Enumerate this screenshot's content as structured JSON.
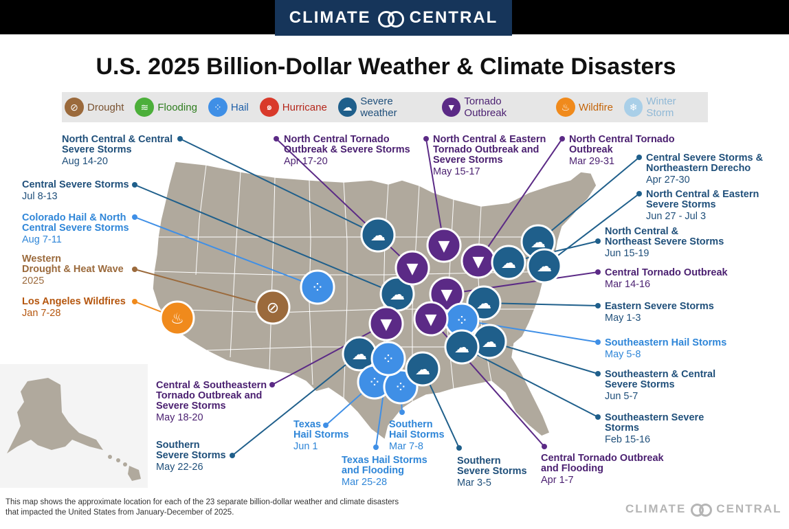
{
  "brand": {
    "left": "CLIMATE",
    "right": "CENTRAL"
  },
  "title": "U.S. 2025 Billion-Dollar Weather & Climate Disasters",
  "legend": [
    {
      "label": "Drought",
      "icon": "drought-icon",
      "color": "#9b6a3c",
      "text_color": "#7a5230"
    },
    {
      "label": "Flooding",
      "icon": "flooding-icon",
      "color": "#4caf3a",
      "text_color": "#2e7d1e"
    },
    {
      "label": "Hail",
      "icon": "hail-icon",
      "color": "#3f8fe6",
      "text_color": "#1e5fa8"
    },
    {
      "label": "Hurricane",
      "icon": "hurricane-icon",
      "color": "#d93a2b",
      "text_color": "#b5261a"
    },
    {
      "label": "Severe weather",
      "icon": "severe-weather-icon",
      "color": "#1f5f8b",
      "text_color": "#1f4f7a"
    },
    {
      "label": "Tornado Outbreak",
      "icon": "tornado-icon",
      "color": "#5b2a86",
      "text_color": "#4a1f70"
    },
    {
      "label": "Wildfire",
      "icon": "wildfire-icon",
      "color": "#f08a1c",
      "text_color": "#c4650a"
    },
    {
      "label": "Winter Storm",
      "icon": "winter-storm-icon",
      "color": "#a9cfe8",
      "text_color": "#8fb8d6"
    }
  ],
  "events": [
    {
      "title": "North Central & Central Severe Storms",
      "lines": [
        "North Central & Central",
        "Severe Storms"
      ],
      "date": "Aug 14-20",
      "type": "severe",
      "color": "#1f4f7a"
    },
    {
      "title": "Central Severe Storms",
      "lines": [
        "Central Severe Storms"
      ],
      "date": "Jul 8-13",
      "type": "severe",
      "color": "#1f4f7a"
    },
    {
      "title": "Colorado Hail & North Central Severe Storms",
      "lines": [
        "Colorado Hail & North",
        "Central Severe Storms"
      ],
      "date": "Aug 7-11",
      "type": "hail",
      "color": "#2f86d8"
    },
    {
      "title": "Western Drought & Heat Wave",
      "lines": [
        "Western",
        "Drought & Heat Wave"
      ],
      "date": "2025",
      "type": "drought",
      "color": "#9b6a3c"
    },
    {
      "title": "Los Angeles Wildfires",
      "lines": [
        "Los Angeles Wildfires"
      ],
      "date": "Jan 7-28",
      "type": "wildfire",
      "color": "#b5560e"
    },
    {
      "title": "North Central Tornado Outbreak & Severe Storms",
      "lines": [
        "North Central Tornado",
        "Outbreak & Severe Storms"
      ],
      "date": "Apr 17-20",
      "type": "tornado",
      "color": "#4a1f70"
    },
    {
      "title": "North Central & Eastern Tornado Outbreak and Severe Storms",
      "lines": [
        "North Central & Eastern",
        "Tornado Outbreak and",
        "Severe Storms"
      ],
      "date": "May 15-17",
      "type": "tornado",
      "color": "#4a1f70"
    },
    {
      "title": "North Central Tornado Outbreak",
      "lines": [
        "North Central Tornado",
        "Outbreak"
      ],
      "date": "Mar 29-31",
      "type": "tornado",
      "color": "#4a1f70"
    },
    {
      "title": "Central Severe Storms & Northeastern Derecho",
      "lines": [
        "Central Severe Storms &",
        "Northeastern Derecho"
      ],
      "date": "Apr 27-30",
      "type": "severe",
      "color": "#1f4f7a"
    },
    {
      "title": "North Central & Eastern Severe Storms",
      "lines": [
        "North Central & Eastern",
        "Severe Storms"
      ],
      "date": "Jun 27 - Jul 3",
      "type": "severe",
      "color": "#1f4f7a"
    },
    {
      "title": "North Central & Northeast Severe Storms",
      "lines": [
        "North Central &",
        "Northeast Severe Storms"
      ],
      "date": "Jun 15-19",
      "type": "severe",
      "color": "#1f4f7a"
    },
    {
      "title": "Central Tornado Outbreak",
      "lines": [
        "Central Tornado Outbreak"
      ],
      "date": "Mar 14-16",
      "type": "tornado",
      "color": "#4a1f70"
    },
    {
      "title": "Eastern Severe Storms",
      "lines": [
        "Eastern Severe Storms"
      ],
      "date": "May 1-3",
      "type": "severe",
      "color": "#1f4f7a"
    },
    {
      "title": "Southeastern Hail Storms",
      "lines": [
        "Southeastern Hail Storms"
      ],
      "date": "May 5-8",
      "type": "hail",
      "color": "#2f86d8"
    },
    {
      "title": "Southeastern & Central Severe Storms",
      "lines": [
        "Southeastern & Central",
        "Severe Storms"
      ],
      "date": "Jun 5-7",
      "type": "severe",
      "color": "#1f4f7a"
    },
    {
      "title": "Southeastern Severe Storms",
      "lines": [
        "Southeastern Severe",
        "Storms"
      ],
      "date": "Feb 15-16",
      "type": "severe",
      "color": "#1f4f7a"
    },
    {
      "title": "Central & Southeastern Tornado Outbreak and Severe Storms",
      "lines": [
        "Central & Southeastern",
        "Tornado Outbreak and",
        "Severe Storms"
      ],
      "date": "May 18-20",
      "type": "tornado",
      "color": "#4a1f70"
    },
    {
      "title": "Southern Severe Storms",
      "lines": [
        "Southern",
        "Severe Storms"
      ],
      "date": "May 22-26",
      "type": "severe",
      "color": "#1f4f7a"
    },
    {
      "title": "Texas Hail Storms",
      "lines": [
        "Texas",
        "Hail Storms"
      ],
      "date": "Jun 1",
      "type": "hail",
      "color": "#2f86d8"
    },
    {
      "title": "Southern Hail Storms",
      "lines": [
        "Southern",
        "Hail Storms"
      ],
      "date": "Mar 7-8",
      "type": "hail",
      "color": "#2f86d8"
    },
    {
      "title": "Texas Hail Storms and Flooding",
      "lines": [
        "Texas Hail Storms",
        "and Flooding"
      ],
      "date": "Mar 25-28",
      "type": "hail",
      "color": "#2f86d8"
    },
    {
      "title": "Southern Severe Storms",
      "lines": [
        "Southern",
        "Severe Storms"
      ],
      "date": "Mar 3-5",
      "type": "severe",
      "color": "#1f4f7a"
    },
    {
      "title": "Central Tornado Outbreak and Flooding",
      "lines": [
        "Central Tornado Outbreak",
        "and Flooding"
      ],
      "date": "Apr 1-7",
      "type": "tornado",
      "color": "#4a1f70"
    }
  ],
  "footer": {
    "line1": "This map shows the approximate location for each of the 23 separate billion-dollar weather and climate disasters",
    "line2": "that impacted the United States from January-December of 2025."
  }
}
